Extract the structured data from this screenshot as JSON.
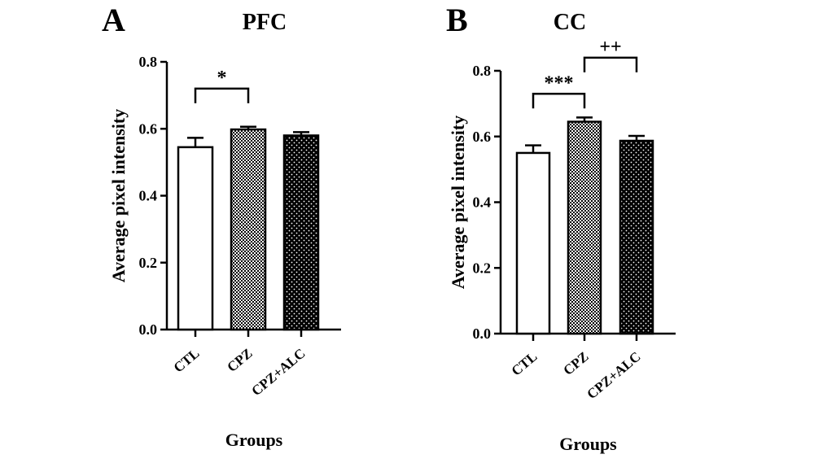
{
  "chart_data": [
    {
      "type": "bar",
      "panel": "A",
      "title": "PFC",
      "xlabel": "Groups",
      "ylabel": "Average pixel intensity",
      "ylim": [
        0,
        0.8
      ],
      "yticks": [
        "0.0",
        "0.2",
        "0.4",
        "0.6",
        "0.8"
      ],
      "categories": [
        "CTL",
        "CPZ",
        "CPZ+ALC"
      ],
      "values": [
        0.545,
        0.598,
        0.58
      ],
      "errors": [
        0.028,
        0.008,
        0.01
      ],
      "fills": [
        "white",
        "checker",
        "dots"
      ],
      "significance": [
        {
          "from": 0,
          "to": 1,
          "label": "*",
          "level": 0.72
        }
      ]
    },
    {
      "type": "bar",
      "panel": "B",
      "title": "CC",
      "xlabel": "Groups",
      "ylabel": "Average pixel intensity",
      "ylim": [
        0,
        0.8
      ],
      "yticks": [
        "0.0",
        "0.2",
        "0.4",
        "0.6",
        "0.8"
      ],
      "categories": [
        "CTL",
        "CPZ",
        "CPZ+ALC"
      ],
      "values": [
        0.55,
        0.645,
        0.587
      ],
      "errors": [
        0.023,
        0.013,
        0.015
      ],
      "fills": [
        "white",
        "checker",
        "dots"
      ],
      "significance": [
        {
          "from": 0,
          "to": 1,
          "label": "***",
          "level": 0.73
        },
        {
          "from": 1,
          "to": 2,
          "label": "++",
          "level": 0.84
        }
      ]
    }
  ]
}
